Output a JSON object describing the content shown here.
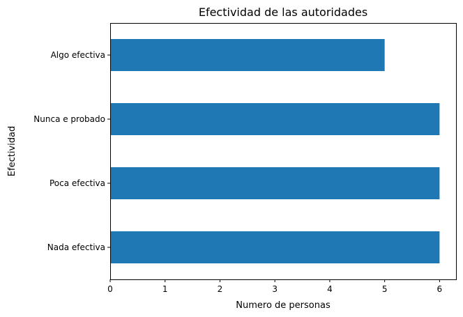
{
  "chart_data": {
    "type": "bar",
    "orientation": "horizontal",
    "title": "Efectividad de las autoridades",
    "xlabel": "Numero de personas",
    "ylabel": "Efectividad",
    "categories": [
      "Nada efectiva",
      "Poca efectiva",
      "Nunca e probado",
      "Algo efectiva"
    ],
    "values": [
      6,
      6,
      6,
      5
    ],
    "xlim": [
      0,
      6.3
    ],
    "xticks": [
      0,
      1,
      2,
      3,
      4,
      5,
      6
    ],
    "grid": false,
    "bar_color": "#1f77b4"
  }
}
